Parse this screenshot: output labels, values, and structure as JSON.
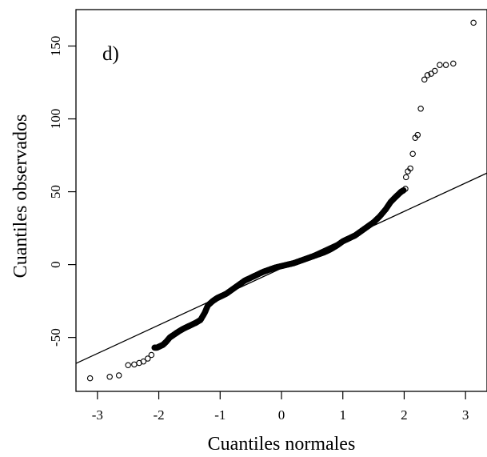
{
  "chart_data": {
    "type": "scatter",
    "title": "",
    "panel_label": "d)",
    "xlabel": "Cuantiles normales",
    "ylabel": "Cuantiles observados",
    "xlim": [
      -3.35,
      3.35
    ],
    "ylim": [
      -87,
      175
    ],
    "grid": false,
    "legend": "none",
    "x_ticks": [
      -3,
      -2,
      -1,
      0,
      1,
      2,
      3
    ],
    "x_tick_labels": [
      "-3",
      "-2",
      "-1",
      "0",
      "1",
      "2",
      "3"
    ],
    "y_ticks": [
      -50,
      0,
      50,
      100,
      150
    ],
    "y_tick_labels": [
      "-50",
      "0",
      "50",
      "100",
      "150"
    ],
    "reference_line": {
      "slope": 19.5,
      "intercept": -2.5
    },
    "series": [
      {
        "points": [
          [
            -3.12,
            -78
          ],
          [
            -2.8,
            -77
          ],
          [
            -2.65,
            -76
          ],
          [
            -2.5,
            -69
          ],
          [
            -2.4,
            -68.5
          ],
          [
            -2.32,
            -67.5
          ],
          [
            -2.25,
            -66.5
          ],
          [
            -2.18,
            -64.5
          ],
          [
            -2.12,
            -62
          ],
          [
            -2.07,
            -57
          ],
          [
            -2.03,
            -57
          ],
          [
            -1.98,
            -56
          ],
          [
            -1.93,
            -55
          ],
          [
            -1.88,
            -53
          ],
          [
            -1.82,
            -50
          ],
          [
            -1.75,
            -48
          ],
          [
            -1.68,
            -46
          ],
          [
            -1.6,
            -44
          ],
          [
            -1.5,
            -42
          ],
          [
            -1.4,
            -40
          ],
          [
            -1.32,
            -38
          ],
          [
            -1.25,
            -33
          ],
          [
            -1.2,
            -28
          ],
          [
            -1.12,
            -25
          ],
          [
            -1.05,
            -23
          ],
          [
            -1.0,
            -22
          ],
          [
            -0.9,
            -20
          ],
          [
            -0.8,
            -17
          ],
          [
            -0.7,
            -14
          ],
          [
            -0.6,
            -11
          ],
          [
            -0.5,
            -9
          ],
          [
            -0.4,
            -7
          ],
          [
            -0.3,
            -5
          ],
          [
            -0.2,
            -3.5
          ],
          [
            -0.1,
            -2
          ],
          [
            0.0,
            -1
          ],
          [
            0.1,
            0
          ],
          [
            0.2,
            1
          ],
          [
            0.3,
            2.5
          ],
          [
            0.4,
            4
          ],
          [
            0.5,
            5.5
          ],
          [
            0.6,
            7
          ],
          [
            0.7,
            8.5
          ],
          [
            0.8,
            10.5
          ],
          [
            0.9,
            13
          ],
          [
            1.0,
            16
          ],
          [
            1.1,
            18
          ],
          [
            1.2,
            20
          ],
          [
            1.3,
            23
          ],
          [
            1.4,
            26
          ],
          [
            1.5,
            29
          ],
          [
            1.6,
            33
          ],
          [
            1.7,
            38
          ],
          [
            1.78,
            43
          ],
          [
            1.85,
            46
          ],
          [
            1.9,
            48
          ],
          [
            1.95,
            50
          ],
          [
            1.99,
            51
          ],
          [
            2.02,
            52
          ],
          [
            2.03,
            60
          ],
          [
            2.06,
            64
          ],
          [
            2.1,
            66
          ],
          [
            2.14,
            76
          ],
          [
            2.18,
            87
          ],
          [
            2.22,
            89
          ],
          [
            2.27,
            107
          ],
          [
            2.33,
            127
          ],
          [
            2.38,
            130
          ],
          [
            2.44,
            131
          ],
          [
            2.5,
            133
          ],
          [
            2.58,
            137
          ],
          [
            2.68,
            137
          ],
          [
            2.8,
            138
          ],
          [
            3.13,
            166
          ]
        ]
      }
    ]
  }
}
